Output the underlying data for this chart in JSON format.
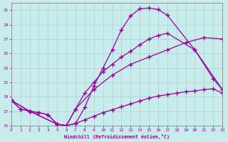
{
  "xlabel": "Windchill (Refroidissement éolien,°C)",
  "xlim": [
    0,
    23
  ],
  "ylim": [
    15,
    32
  ],
  "yticks": [
    15,
    17,
    19,
    21,
    23,
    25,
    27,
    29,
    31
  ],
  "xticks": [
    0,
    1,
    2,
    3,
    4,
    5,
    6,
    7,
    8,
    9,
    10,
    11,
    12,
    13,
    14,
    15,
    16,
    17,
    18,
    19,
    20,
    21,
    22,
    23
  ],
  "bg_color": "#c8ecec",
  "line_color": "#990099",
  "grid_color": "#b0cccc",
  "curve1_x": [
    0,
    1,
    2,
    3,
    4,
    5,
    6,
    7,
    8,
    9,
    10,
    11,
    12,
    13,
    14,
    15,
    16,
    17,
    20,
    23
  ],
  "curve1_y": [
    18.5,
    17.3,
    17.0,
    16.8,
    16.5,
    15.2,
    15.0,
    15.3,
    17.5,
    20.5,
    23.0,
    25.5,
    28.3,
    30.2,
    31.2,
    31.3,
    31.1,
    30.3,
    25.5,
    20.0
  ],
  "curve2_x": [
    0,
    2,
    5,
    6,
    7,
    8,
    9,
    10,
    11,
    12,
    13,
    14,
    15,
    16,
    17,
    20,
    22,
    23
  ],
  "curve2_y": [
    18.5,
    17.0,
    15.2,
    15.0,
    17.3,
    19.5,
    21.0,
    22.5,
    23.5,
    24.5,
    25.3,
    26.2,
    27.0,
    27.5,
    27.8,
    25.5,
    21.5,
    20.0
  ],
  "curve3_x": [
    0,
    2,
    5,
    6,
    7,
    9,
    11,
    13,
    15,
    17,
    19,
    21,
    23
  ],
  "curve3_y": [
    18.5,
    17.0,
    15.2,
    15.0,
    17.3,
    20.0,
    22.0,
    23.5,
    24.5,
    25.5,
    26.5,
    27.2,
    27.0
  ],
  "curve4_x": [
    0,
    1,
    2,
    3,
    4,
    5,
    6,
    7,
    8,
    9,
    10,
    11,
    12,
    13,
    14,
    15,
    16,
    17,
    18,
    19,
    20,
    21,
    22,
    23
  ],
  "curve4_y": [
    18.5,
    17.3,
    17.0,
    16.8,
    16.5,
    15.2,
    15.0,
    15.3,
    15.8,
    16.3,
    16.8,
    17.2,
    17.6,
    18.0,
    18.4,
    18.8,
    19.1,
    19.3,
    19.5,
    19.7,
    19.8,
    20.0,
    20.1,
    19.5
  ]
}
